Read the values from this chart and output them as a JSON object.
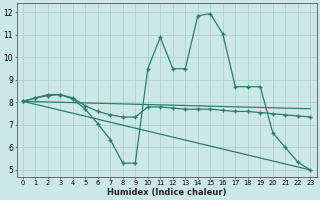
{
  "xlabel": "Humidex (Indice chaleur)",
  "xlim": [
    -0.5,
    23.5
  ],
  "ylim": [
    4.7,
    12.4
  ],
  "yticks": [
    5,
    6,
    7,
    8,
    9,
    10,
    11,
    12
  ],
  "xticks": [
    0,
    1,
    2,
    3,
    4,
    5,
    6,
    7,
    8,
    9,
    10,
    11,
    12,
    13,
    14,
    15,
    16,
    17,
    18,
    19,
    20,
    21,
    22,
    23
  ],
  "bg_color": "#cce8e6",
  "line_color": "#2a7d6e",
  "grid_color": "#aaccca",
  "curves": [
    {
      "x": [
        0,
        1,
        2,
        3,
        4,
        5,
        6,
        7,
        8,
        9,
        10,
        11,
        12,
        13,
        14,
        15,
        16,
        17,
        18,
        19,
        20,
        21,
        22,
        23
      ],
      "y": [
        8.05,
        8.2,
        8.35,
        8.35,
        8.15,
        7.7,
        7.05,
        6.35,
        5.3,
        5.3,
        9.5,
        10.9,
        9.5,
        9.5,
        11.85,
        11.95,
        11.05,
        8.7,
        8.7,
        8.7,
        6.65,
        6.0,
        5.35,
        5.0
      ]
    },
    {
      "x": [
        0,
        1,
        2,
        3,
        4,
        5,
        6,
        7,
        8,
        9,
        10,
        11,
        12,
        13,
        14,
        15,
        16,
        17,
        18,
        19,
        20,
        21,
        22,
        23
      ],
      "y": [
        8.05,
        8.2,
        8.3,
        8.35,
        8.2,
        7.85,
        7.6,
        7.45,
        7.35,
        7.35,
        7.8,
        7.8,
        7.75,
        7.7,
        7.7,
        7.7,
        7.65,
        7.6,
        7.6,
        7.55,
        7.5,
        7.45,
        7.4,
        7.35
      ]
    },
    {
      "x": [
        0,
        23
      ],
      "y": [
        8.05,
        7.72
      ]
    },
    {
      "x": [
        0,
        23
      ],
      "y": [
        8.05,
        5.0
      ]
    }
  ]
}
